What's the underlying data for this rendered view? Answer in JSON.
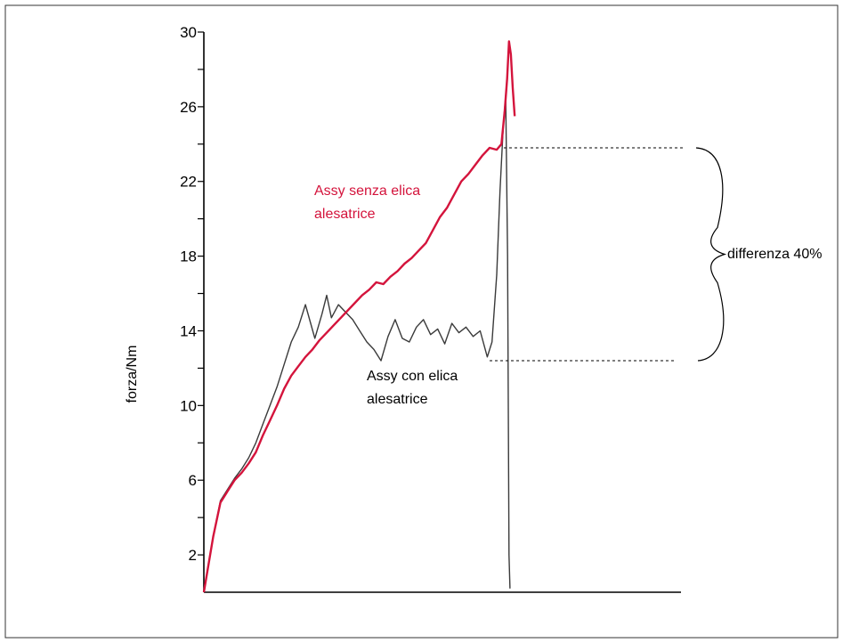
{
  "chart_data": {
    "type": "line",
    "ylabel": "forza/Nm",
    "xlabel": "",
    "ylim": [
      0,
      30
    ],
    "y_ticks_labeled": [
      2,
      6,
      10,
      14,
      18,
      22,
      26,
      30
    ],
    "grid": false,
    "colors": {
      "senza": "#d4143c",
      "con": "#3a3a3a",
      "axis": "#000000"
    },
    "x_range": [
      0,
      100
    ],
    "series": [
      {
        "name": "Assy senza elica alesatrice",
        "color": "#d4143c",
        "points": [
          [
            0,
            0
          ],
          [
            2,
            3
          ],
          [
            3.5,
            4.8
          ],
          [
            5,
            5.4
          ],
          [
            6.5,
            6.0
          ],
          [
            8,
            6.4
          ],
          [
            9.5,
            6.9
          ],
          [
            11,
            7.5
          ],
          [
            12.5,
            8.4
          ],
          [
            14,
            9.2
          ],
          [
            15.5,
            10.0
          ],
          [
            17,
            10.9
          ],
          [
            18.5,
            11.6
          ],
          [
            20,
            12.1
          ],
          [
            21.5,
            12.6
          ],
          [
            23,
            13.0
          ],
          [
            24.5,
            13.5
          ],
          [
            26,
            13.9
          ],
          [
            27.5,
            14.3
          ],
          [
            29,
            14.7
          ],
          [
            30.5,
            15.1
          ],
          [
            32,
            15.5
          ],
          [
            33.5,
            15.9
          ],
          [
            35,
            16.2
          ],
          [
            36.5,
            16.6
          ],
          [
            38,
            16.5
          ],
          [
            39.5,
            16.9
          ],
          [
            41,
            17.2
          ],
          [
            42.5,
            17.6
          ],
          [
            44,
            17.9
          ],
          [
            45.5,
            18.3
          ],
          [
            47,
            18.7
          ],
          [
            48.5,
            19.4
          ],
          [
            50,
            20.1
          ],
          [
            51.5,
            20.6
          ],
          [
            53,
            21.3
          ],
          [
            54.5,
            22.0
          ],
          [
            56,
            22.4
          ],
          [
            57.5,
            22.9
          ],
          [
            59,
            23.4
          ],
          [
            60.5,
            23.8
          ],
          [
            62,
            23.7
          ],
          [
            63,
            24.0
          ],
          [
            63.7,
            25.8
          ],
          [
            64.2,
            27.5
          ],
          [
            64.6,
            29.5
          ],
          [
            65,
            28.8
          ],
          [
            65.4,
            27.0
          ],
          [
            65.8,
            25.5
          ]
        ]
      },
      {
        "name": "Assy con elica alesatrice",
        "color": "#3a3a3a",
        "points": [
          [
            0,
            0
          ],
          [
            2,
            3
          ],
          [
            3.5,
            4.9
          ],
          [
            5,
            5.5
          ],
          [
            6.5,
            6.1
          ],
          [
            8,
            6.6
          ],
          [
            9.5,
            7.2
          ],
          [
            11,
            8.0
          ],
          [
            12.5,
            9.0
          ],
          [
            14,
            10.0
          ],
          [
            15.5,
            11.0
          ],
          [
            17,
            12.2
          ],
          [
            18.5,
            13.4
          ],
          [
            20,
            14.2
          ],
          [
            21.5,
            15.4
          ],
          [
            22.5,
            14.5
          ],
          [
            23.5,
            13.6
          ],
          [
            25,
            14.9
          ],
          [
            26,
            15.9
          ],
          [
            27,
            14.7
          ],
          [
            28.5,
            15.4
          ],
          [
            30,
            15.0
          ],
          [
            31.5,
            14.6
          ],
          [
            33,
            14.0
          ],
          [
            34.5,
            13.4
          ],
          [
            36,
            13.0
          ],
          [
            37.5,
            12.4
          ],
          [
            39,
            13.7
          ],
          [
            40.5,
            14.6
          ],
          [
            42,
            13.6
          ],
          [
            43.5,
            13.4
          ],
          [
            45,
            14.2
          ],
          [
            46.5,
            14.6
          ],
          [
            48,
            13.8
          ],
          [
            49.5,
            14.1
          ],
          [
            51,
            13.3
          ],
          [
            52.5,
            14.4
          ],
          [
            54,
            13.9
          ],
          [
            55.5,
            14.2
          ],
          [
            57,
            13.7
          ],
          [
            58.5,
            14.0
          ],
          [
            60,
            12.6
          ],
          [
            61,
            13.4
          ],
          [
            62,
            17.0
          ],
          [
            62.7,
            21.5
          ],
          [
            63.4,
            25.0
          ],
          [
            63.9,
            26.6
          ],
          [
            64.3,
            18.0
          ],
          [
            64.6,
            2.0
          ],
          [
            64.8,
            0.2
          ]
        ]
      }
    ],
    "annotations": {
      "senza_label": [
        "Assy senza elica",
        "alesatrice"
      ],
      "con_label": [
        "Assy con elica",
        "alesatrice"
      ],
      "difference_label": "differenza 40%",
      "upper_level": 23.8,
      "lower_level": 12.4
    }
  }
}
